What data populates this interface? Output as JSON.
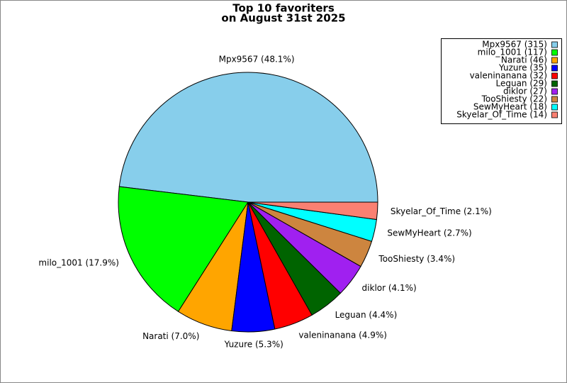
{
  "chart_data": {
    "type": "pie",
    "title": "Top 10 favoriters",
    "subtitle": "on August 31st 2025",
    "categories": [
      "Mpx9567 (315)",
      "milo_1001 (117)",
      "Narati (46)",
      "Yuzure (35)",
      "valeninanana (32)",
      "Leguan (29)",
      "diklor (27)",
      "TooShiesty (22)",
      "SewMyHeart (18)",
      "Skyelar_Of_Time (14)"
    ],
    "values": [
      315,
      117,
      46,
      35,
      32,
      29,
      27,
      22,
      18,
      14
    ],
    "slice_labels": [
      "Mpx9567 (48.1%)",
      "milo_1001 (17.9%)",
      "Narati (7.0%)",
      "Yuzure (5.3%)",
      "valeninanana (4.9%)",
      "Leguan (4.4%)",
      "diklor (4.1%)",
      "TooShiesty (3.4%)",
      "SewMyHeart (2.7%)",
      "Skyelar_Of_Time (2.1%)"
    ],
    "colors": [
      "#87ceeb",
      "#00ff00",
      "#ffa500",
      "#0000ff",
      "#ff0000",
      "#006400",
      "#a020f0",
      "#cd853f",
      "#00ffff",
      "#fa8072"
    ],
    "legend": "upper right"
  }
}
